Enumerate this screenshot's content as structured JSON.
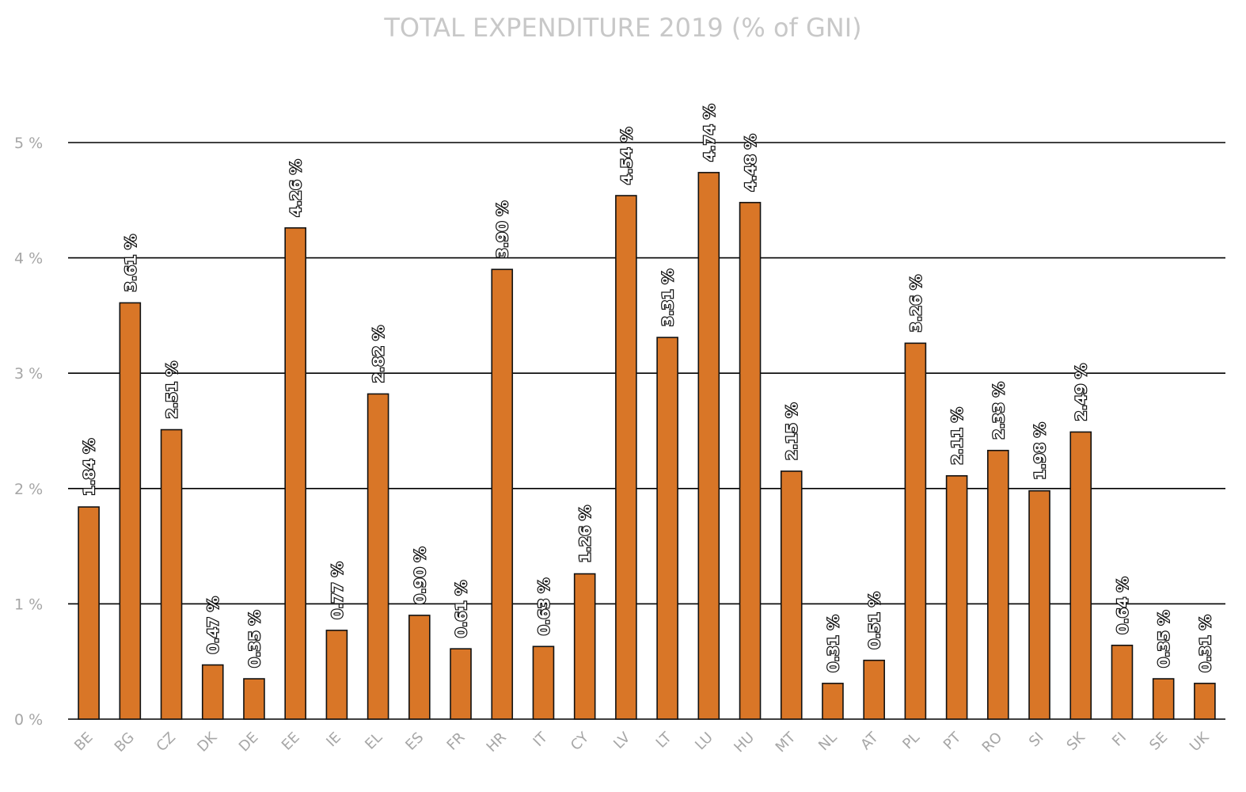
{
  "chart_data": {
    "type": "bar",
    "title": "TOTAL EXPENDITURE 2019 (% of GNI)",
    "xlabel": "",
    "ylabel": "",
    "ylim": [
      0,
      5
    ],
    "yticks": [
      0,
      1,
      2,
      3,
      4,
      5
    ],
    "ytick_labels": [
      "0 %",
      "1 %",
      "2 %",
      "3 %",
      "4 %",
      "5 %"
    ],
    "grid": true,
    "bar_color": "#D97627",
    "categories": [
      "BE",
      "BG",
      "CZ",
      "DK",
      "DE",
      "EE",
      "IE",
      "EL",
      "ES",
      "FR",
      "HR",
      "IT",
      "CY",
      "LV",
      "LT",
      "LU",
      "HU",
      "MT",
      "NL",
      "AT",
      "PL",
      "PT",
      "RO",
      "SI",
      "SK",
      "FI",
      "SE",
      "UK"
    ],
    "values": [
      1.84,
      3.61,
      2.51,
      0.47,
      0.35,
      4.26,
      0.77,
      2.82,
      0.9,
      0.61,
      3.9,
      0.63,
      1.26,
      4.54,
      3.31,
      4.74,
      4.48,
      2.15,
      0.31,
      0.51,
      3.26,
      2.11,
      2.33,
      1.98,
      2.49,
      0.64,
      0.35,
      0.31
    ],
    "data_labels": [
      "1.84 %",
      "3.61 %",
      "2.51 %",
      "0.47 %",
      "0.35 %",
      "4.26 %",
      "0.77 %",
      "2.82 %",
      "0.90 %",
      "0.61 %",
      "3.90 %",
      "0.63 %",
      "1.26 %",
      "4.54 %",
      "3.31 %",
      "4.74 %",
      "4.48 %",
      "2.15 %",
      "0.31 %",
      "0.51 %",
      "3.26 %",
      "2.11 %",
      "2.33 %",
      "1.98 %",
      "2.49 %",
      "0.64 %",
      "0.35 %",
      "0.31 %"
    ]
  }
}
